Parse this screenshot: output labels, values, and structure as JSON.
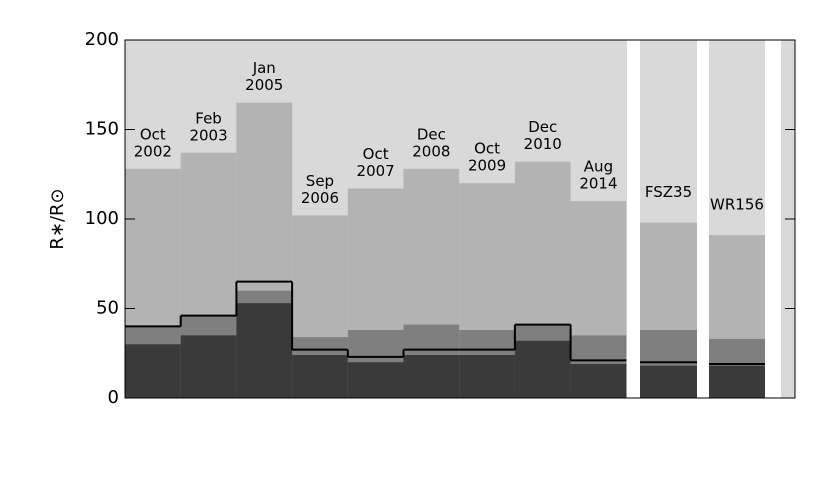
{
  "chart_data": {
    "type": "layered-bar",
    "y_label": "R∗/R⊙",
    "categories": [
      [
        "Oct",
        "2002"
      ],
      [
        "Feb",
        "2003"
      ],
      [
        "Jan",
        "2005"
      ],
      [
        "Sep",
        "2006"
      ],
      [
        "Oct",
        "2007"
      ],
      [
        "Dec",
        "2008"
      ],
      [
        "Oct",
        "2009"
      ],
      [
        "Dec",
        "2010"
      ],
      [
        "Aug",
        "2014"
      ],
      [
        "FSZ35"
      ],
      [
        "WR156"
      ]
    ],
    "background_color": "#d9d9d9",
    "series": [
      {
        "color": "#b3b3b3",
        "values": [
          128,
          137,
          165,
          102,
          117,
          128,
          120,
          132,
          110,
          98,
          91
        ]
      },
      {
        "color": "#7f7f7f",
        "values": [
          40,
          46,
          60,
          34,
          38,
          41,
          38,
          41,
          35,
          38,
          33
        ]
      },
      {
        "color": "#3a3a3a",
        "values": [
          30,
          35,
          53,
          24,
          20,
          24,
          24,
          32,
          19,
          18,
          18
        ]
      }
    ],
    "line": {
      "color": "#000000",
      "values": [
        40,
        46,
        65,
        27,
        23,
        27,
        27,
        41,
        21,
        20,
        19
      ]
    },
    "ylim": [
      0,
      200
    ],
    "yticks": [
      0,
      50,
      100,
      150,
      200
    ]
  }
}
